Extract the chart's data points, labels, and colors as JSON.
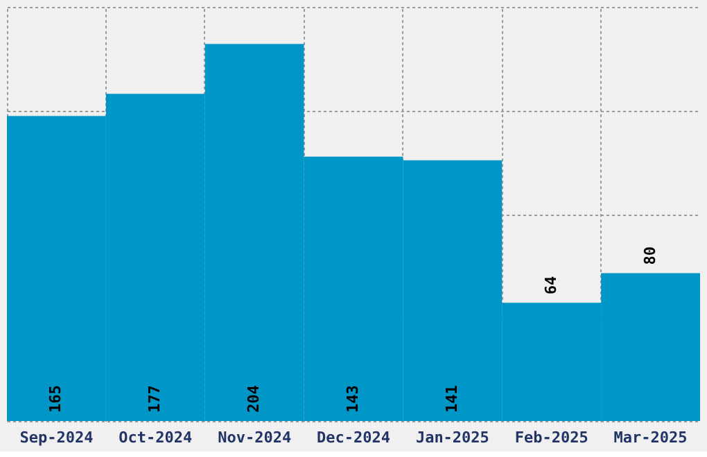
{
  "chart_data": {
    "type": "bar",
    "categories": [
      "Sep-2024",
      "Oct-2024",
      "Nov-2024",
      "Dec-2024",
      "Jan-2025",
      "Feb-2025",
      "Mar-2025"
    ],
    "values": [
      165,
      177,
      204,
      143,
      141,
      64,
      80
    ],
    "color": "#0096c8",
    "ylim": [
      0,
      224
    ],
    "yticks": [
      {
        "value": 0,
        "label": null
      },
      {
        "value": 56,
        "label": null
      },
      {
        "value": 112,
        "label": null
      },
      {
        "value": 168,
        "label": null
      },
      {
        "value": 224,
        "label": null
      }
    ],
    "tick_labels": "x",
    "grid": true,
    "data_labels": true
  }
}
